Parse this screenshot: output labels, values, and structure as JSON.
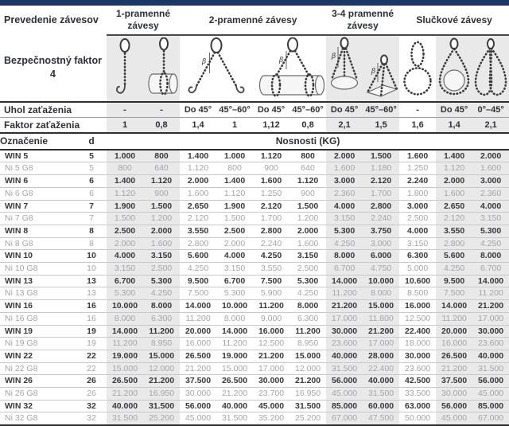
{
  "accent_color": "#1c3767",
  "band_color": "#e9e9e9",
  "labels": {
    "prevedenie": "Prevedenie závesov",
    "safety_line1": "Bezpečnostný faktor",
    "safety_line2": "4",
    "uhol": "Uhol zaťaženia",
    "faktor": "Faktor zaťaženia",
    "oznacenie": "Označenie",
    "d": "d",
    "nosnosti": "Nosnosti (KG)"
  },
  "groups": [
    "1-pramenné závesy",
    "2-pramenné závesy",
    "3-4 pramenné závesy",
    "Slučkové závesy"
  ],
  "icons": {
    "beta": "β",
    "names": [
      "single-leg-sling-icon",
      "single-leg-choker-icon",
      "two-leg-sling-icon",
      "two-leg-choker-icon",
      "three-leg-sling-icon",
      "four-leg-sling-icon",
      "endless-sling-icon",
      "loop-sling-icon",
      "basket-sling-icon"
    ]
  },
  "angle_values": [
    "-",
    "-",
    "Do 45°",
    "45°–60°",
    "Do 45°",
    "45°–60°",
    "Do 45°",
    "45°–60°",
    "-",
    "Do 45°",
    "0°–45°"
  ],
  "factor_values": [
    "1",
    "0,8",
    "1,4",
    "1",
    "1,12",
    "0,8",
    "2,1",
    "1,5",
    "1,6",
    "1,4",
    "2,1"
  ],
  "rows": [
    {
      "name": "WIN 5",
      "d": "5",
      "variant": "win",
      "values": [
        "1.000",
        "800",
        "1.400",
        "1.000",
        "1.120",
        "800",
        "2.000",
        "1.500",
        "1.600",
        "1.400",
        "2.000"
      ]
    },
    {
      "name": "Ni 5 G8",
      "d": "5",
      "variant": "ni",
      "values": [
        "800",
        "640",
        "1.120",
        "800",
        "900",
        "640",
        "1.600",
        "1.180",
        "1.250",
        "1.120",
        "1.600"
      ]
    },
    {
      "name": "WIN 6",
      "d": "6",
      "variant": "win",
      "values": [
        "1.400",
        "1.120",
        "2.000",
        "1.400",
        "1.600",
        "1.120",
        "3.000",
        "2.120",
        "2.240",
        "2.000",
        "3.000"
      ]
    },
    {
      "name": "Ni 6 G8",
      "d": "6",
      "variant": "ni",
      "values": [
        "1.120",
        "900",
        "1.600",
        "1.120",
        "1.250",
        "900",
        "2.360",
        "1.700",
        "1.800",
        "1.600",
        "2.360"
      ]
    },
    {
      "name": "WIN 7",
      "d": "7",
      "variant": "win",
      "values": [
        "1.900",
        "1.500",
        "2.650",
        "1.900",
        "2.120",
        "1.500",
        "4.000",
        "2.800",
        "3.000",
        "2.650",
        "4.000"
      ]
    },
    {
      "name": "Ni 7 G8",
      "d": "7",
      "variant": "ni",
      "values": [
        "1.500",
        "1.200",
        "2.120",
        "1.500",
        "1.700",
        "1.200",
        "3.150",
        "2.240",
        "2.500",
        "2.120",
        "3.150"
      ]
    },
    {
      "name": "WIN 8",
      "d": "8",
      "variant": "win",
      "values": [
        "2.500",
        "2.000",
        "3.550",
        "2.500",
        "2.800",
        "2.000",
        "5.300",
        "3.750",
        "4.000",
        "3.550",
        "5.300"
      ]
    },
    {
      "name": "Ni 8 G8",
      "d": "8",
      "variant": "ni",
      "values": [
        "2.000",
        "1.600",
        "2.800",
        "2.000",
        "2.240",
        "1.600",
        "4.250",
        "3.000",
        "3.150",
        "2.800",
        "4.250"
      ]
    },
    {
      "name": "WIN 10",
      "d": "10",
      "variant": "win",
      "values": [
        "4.000",
        "3.150",
        "5.600",
        "4.000",
        "4.250",
        "3.150",
        "8.000",
        "6.000",
        "6.300",
        "5.600",
        "8.000"
      ]
    },
    {
      "name": "Ni 10 G8",
      "d": "10",
      "variant": "ni",
      "values": [
        "3.150",
        "2.500",
        "4.250",
        "3.150",
        "3.550",
        "2.500",
        "6.700",
        "4.750",
        "5.000",
        "4.250",
        "6.700"
      ]
    },
    {
      "name": "WIN 13",
      "d": "13",
      "variant": "win",
      "values": [
        "6.700",
        "5.300",
        "9.500",
        "6.700",
        "7.500",
        "5.300",
        "14.000",
        "10.000",
        "10.600",
        "9.500",
        "14.000"
      ]
    },
    {
      "name": "Ni 13 G8",
      "d": "13",
      "variant": "ni",
      "values": [
        "5.300",
        "4.250",
        "7.500",
        "5.300",
        "5.900",
        "4.250",
        "11.200",
        "8.000",
        "8.500",
        "7.500",
        "11.200"
      ]
    },
    {
      "name": "WIN 16",
      "d": "16",
      "variant": "win",
      "values": [
        "10.000",
        "8.000",
        "14.000",
        "10.000",
        "11.200",
        "8.000",
        "21.200",
        "15.000",
        "16.000",
        "14.000",
        "21.200"
      ]
    },
    {
      "name": "Ni 16 G8",
      "d": "16",
      "variant": "ni",
      "values": [
        "8.000",
        "6.300",
        "11.200",
        "8.000",
        "9.000",
        "6.300",
        "17.000",
        "11.800",
        "12.500",
        "11.200",
        "17.000"
      ]
    },
    {
      "name": "WIN 19",
      "d": "19",
      "variant": "win",
      "values": [
        "14.000",
        "11.200",
        "20.000",
        "14.000",
        "16.000",
        "11.200",
        "30.000",
        "21.200",
        "22.400",
        "20.000",
        "30.000"
      ]
    },
    {
      "name": "Ni 19 G8",
      "d": "19",
      "variant": "ni",
      "values": [
        "11.200",
        "8.950",
        "16.000",
        "11.200",
        "12.500",
        "8.950",
        "23.600",
        "17.000",
        "18.000",
        "16.000",
        "23.600"
      ]
    },
    {
      "name": "WIN 22",
      "d": "22",
      "variant": "win",
      "values": [
        "19.000",
        "15.000",
        "26.500",
        "19.000",
        "21.200",
        "15.000",
        "40.000",
        "28.000",
        "30.000",
        "26.500",
        "40.000"
      ]
    },
    {
      "name": "Ni 22 G8",
      "d": "22",
      "variant": "ni",
      "values": [
        "15.000",
        "12.000",
        "21.200",
        "15.000",
        "17.000",
        "12.000",
        "31.500",
        "22.400",
        "23.600",
        "21.200",
        "31.500"
      ]
    },
    {
      "name": "WIN 26",
      "d": "26",
      "variant": "win",
      "values": [
        "26.500",
        "21.200",
        "37.500",
        "26.500",
        "30.000",
        "21.200",
        "56.000",
        "40.000",
        "42.500",
        "37.500",
        "56.000"
      ]
    },
    {
      "name": "Ni 26 G8",
      "d": "26",
      "variant": "ni",
      "values": [
        "21.200",
        "16.950",
        "30.000",
        "21.200",
        "23.700",
        "16.950",
        "45.000",
        "31.500",
        "33.500",
        "30.000",
        "45.000"
      ]
    },
    {
      "name": "WIN 32",
      "d": "32",
      "variant": "win",
      "values": [
        "40.000",
        "31.500",
        "56.000",
        "40.000",
        "45.000",
        "31.500",
        "85.000",
        "60.000",
        "63.000",
        "56.000",
        "85.000"
      ]
    },
    {
      "name": "Ni 32 G8",
      "d": "32",
      "variant": "ni",
      "values": [
        "31.500",
        "25.200",
        "45.000",
        "31.500",
        "35.200",
        "25.200",
        "67.000",
        "47.500",
        "50.000",
        "45.000",
        "67.000"
      ]
    }
  ]
}
